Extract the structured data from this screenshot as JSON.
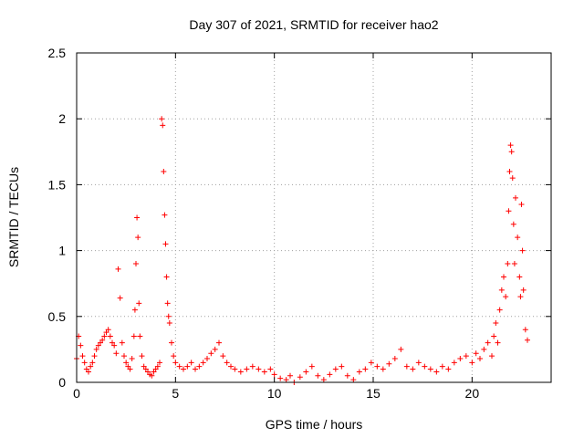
{
  "chart_data": {
    "type": "scatter",
    "title": "Day 307 of 2021, SRMTID for receiver hao2",
    "xlabel": "GPS time / hours",
    "ylabel": "SRMTID / TECUs",
    "xlim": [
      0,
      24
    ],
    "ylim": [
      0,
      2.5
    ],
    "xticks": [
      "0",
      "5",
      "10",
      "15",
      "20"
    ],
    "yticks": [
      "0",
      "0.5",
      "1",
      "1.5",
      "2",
      "2.5"
    ],
    "grid": true,
    "marker": "+",
    "color": "#ff0000",
    "series": [
      {
        "name": "hao2",
        "x": [
          0.0,
          0.1,
          0.2,
          0.3,
          0.4,
          0.5,
          0.6,
          0.7,
          0.8,
          0.9,
          1.0,
          1.1,
          1.2,
          1.3,
          1.4,
          1.5,
          1.6,
          1.7,
          1.8,
          1.9,
          2.0,
          2.1,
          2.2,
          2.3,
          2.4,
          2.5,
          2.6,
          2.7,
          2.8,
          2.9,
          2.95,
          3.0,
          3.05,
          3.1,
          3.15,
          3.2,
          3.3,
          3.4,
          3.5,
          3.6,
          3.7,
          3.8,
          3.9,
          4.0,
          4.1,
          4.2,
          4.3,
          4.35,
          4.4,
          4.45,
          4.5,
          4.55,
          4.6,
          4.65,
          4.7,
          4.8,
          4.9,
          5.0,
          5.2,
          5.4,
          5.6,
          5.8,
          6.0,
          6.2,
          6.4,
          6.6,
          6.8,
          7.0,
          7.2,
          7.4,
          7.6,
          7.8,
          8.0,
          8.3,
          8.6,
          8.9,
          9.2,
          9.5,
          9.8,
          10.0,
          10.3,
          10.6,
          10.8,
          11.0,
          11.3,
          11.6,
          11.9,
          12.2,
          12.5,
          12.8,
          13.1,
          13.4,
          13.7,
          14.0,
          14.3,
          14.6,
          14.9,
          15.2,
          15.5,
          15.8,
          16.1,
          16.4,
          16.7,
          17.0,
          17.3,
          17.6,
          17.9,
          18.2,
          18.5,
          18.8,
          19.1,
          19.4,
          19.7,
          20.0,
          20.2,
          20.4,
          20.6,
          20.8,
          21.0,
          21.1,
          21.2,
          21.3,
          21.4,
          21.5,
          21.6,
          21.7,
          21.8,
          21.85,
          21.9,
          21.95,
          22.0,
          22.05,
          22.1,
          22.15,
          22.2,
          22.3,
          22.4,
          22.45,
          22.5,
          22.55,
          22.6,
          22.7,
          22.8
        ],
        "y": [
          0.18,
          0.35,
          0.28,
          0.2,
          0.15,
          0.1,
          0.08,
          0.12,
          0.15,
          0.2,
          0.25,
          0.28,
          0.3,
          0.32,
          0.35,
          0.38,
          0.4,
          0.35,
          0.3,
          0.28,
          0.22,
          0.86,
          0.64,
          0.3,
          0.2,
          0.15,
          0.12,
          0.1,
          0.18,
          0.35,
          0.55,
          0.9,
          1.25,
          1.1,
          0.6,
          0.35,
          0.2,
          0.12,
          0.1,
          0.08,
          0.06,
          0.05,
          0.08,
          0.1,
          0.12,
          0.15,
          2.0,
          1.95,
          1.6,
          1.27,
          1.05,
          0.8,
          0.6,
          0.5,
          0.45,
          0.3,
          0.2,
          0.15,
          0.12,
          0.1,
          0.12,
          0.15,
          0.1,
          0.12,
          0.15,
          0.18,
          0.22,
          0.25,
          0.3,
          0.2,
          0.15,
          0.12,
          0.1,
          0.08,
          0.1,
          0.12,
          0.1,
          0.08,
          0.1,
          0.06,
          0.03,
          0.02,
          0.05,
          0.0,
          0.04,
          0.08,
          0.12,
          0.05,
          0.02,
          0.06,
          0.1,
          0.12,
          0.05,
          0.02,
          0.08,
          0.1,
          0.15,
          0.12,
          0.1,
          0.14,
          0.18,
          0.25,
          0.12,
          0.1,
          0.15,
          0.12,
          0.1,
          0.08,
          0.12,
          0.1,
          0.15,
          0.18,
          0.2,
          0.15,
          0.22,
          0.18,
          0.25,
          0.3,
          0.2,
          0.35,
          0.45,
          0.3,
          0.55,
          0.7,
          0.8,
          0.65,
          0.9,
          1.3,
          1.6,
          1.8,
          1.75,
          1.55,
          1.2,
          0.9,
          1.4,
          1.1,
          0.8,
          0.65,
          1.35,
          1.0,
          0.7,
          0.4,
          0.32
        ]
      }
    ]
  }
}
